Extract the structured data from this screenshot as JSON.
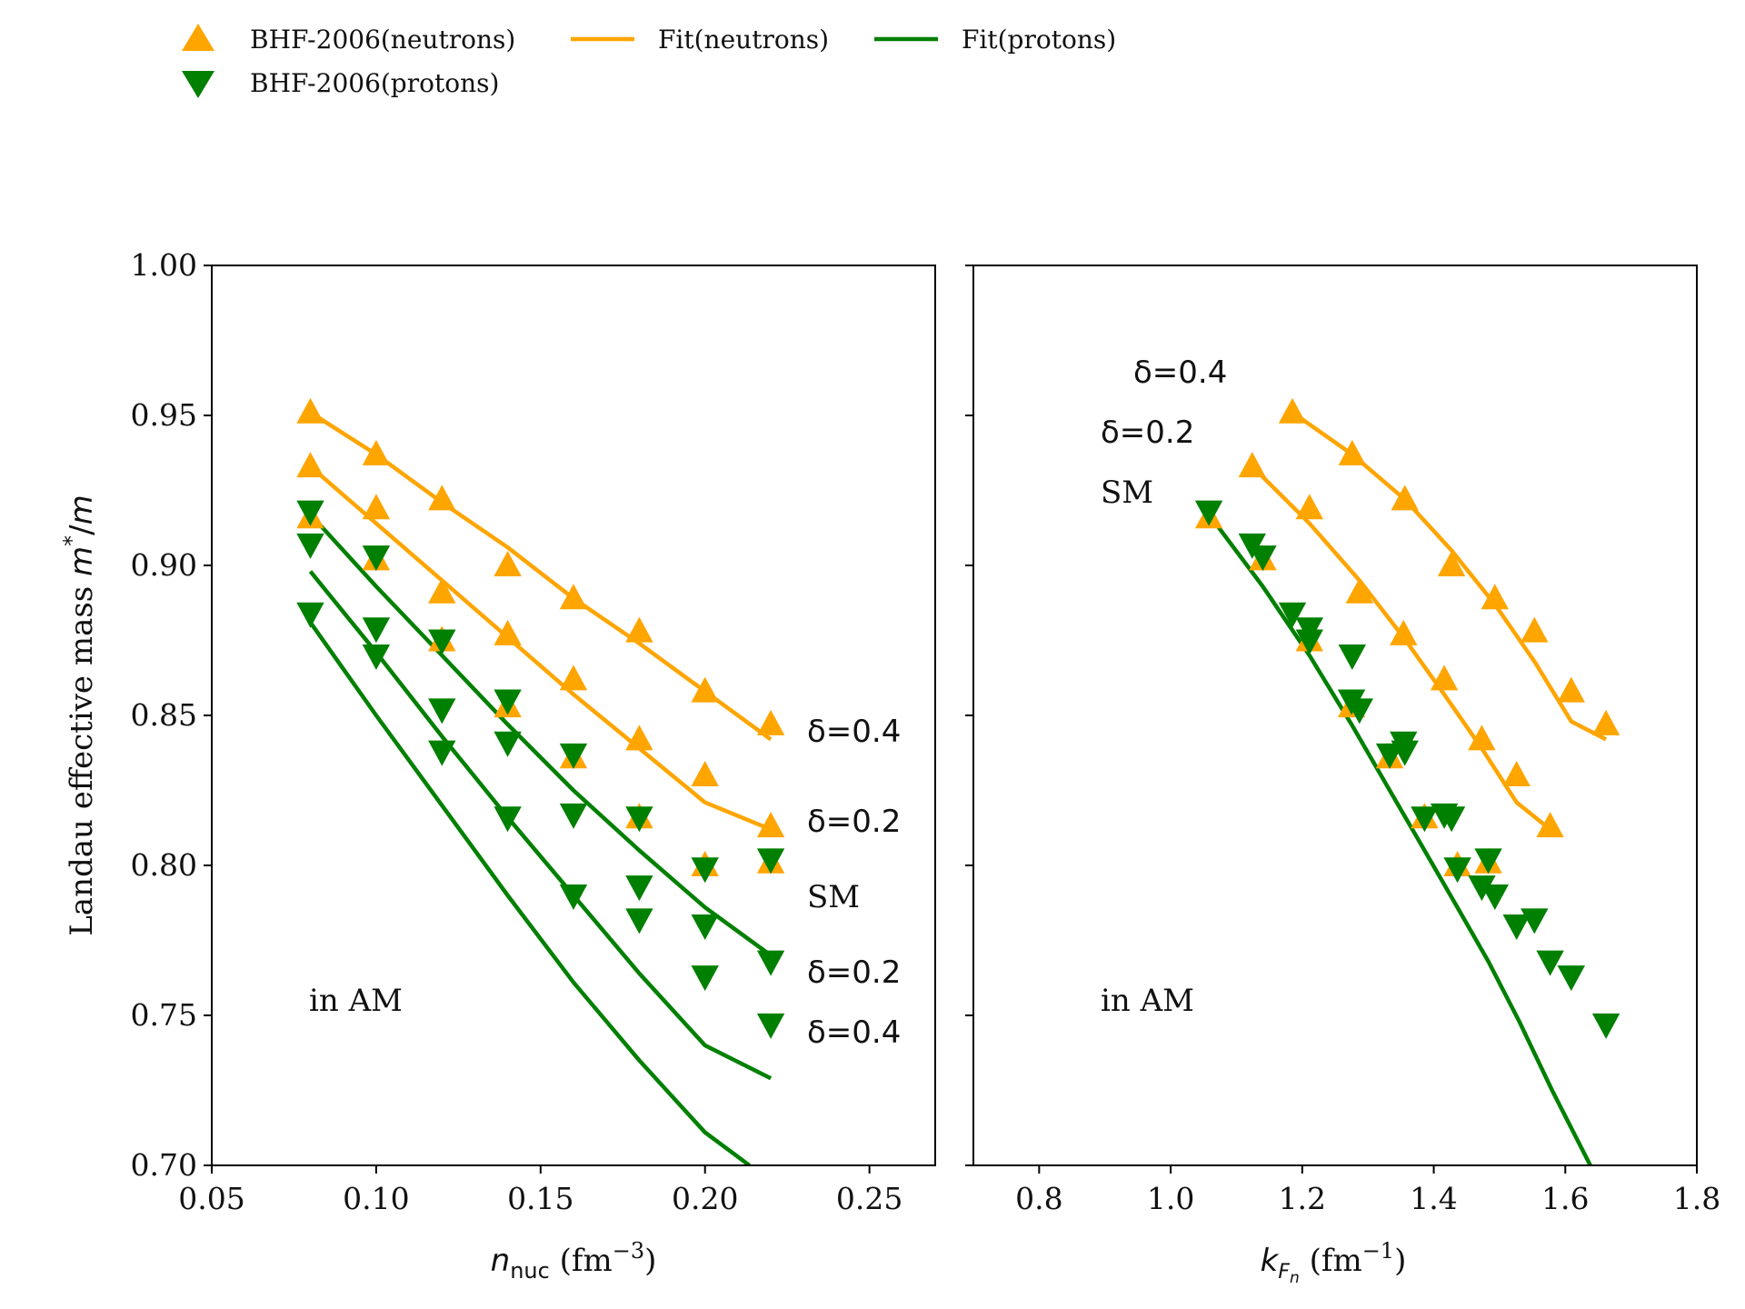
{
  "legend": {
    "neutron_points": "BHF-2006(neutrons)",
    "proton_points": "BHF-2006(protons)",
    "neutron_fit": "Fit(neutrons)",
    "proton_fit": "Fit(protons)"
  },
  "colors": {
    "neutron": "#FFA500",
    "proton": "#008000"
  },
  "chart_data": [
    {
      "type": "scatter",
      "panel": "left",
      "xlabel": "n_nuc (fm^-3)",
      "ylabel": "Landau effective mass m*/m",
      "xlim": [
        0.05,
        0.27
      ],
      "ylim": [
        0.7,
        1.0
      ],
      "xticks": [
        "0.05",
        "0.10",
        "0.15",
        "0.20",
        "0.25"
      ],
      "yticks": [
        "0.70",
        "0.75",
        "0.80",
        "0.85",
        "0.90",
        "0.95",
        "1.00"
      ],
      "annotations": {
        "neutron_d04": "δ=0.4",
        "neutron_d02": "δ=0.2",
        "sm": "SM",
        "proton_d02": "δ=0.2",
        "proton_d04": "δ=0.4",
        "region": "in AM"
      },
      "series": [
        {
          "name": "BHF-2006(neutrons)",
          "kind": "points",
          "group": "neutron",
          "delta": 0.4,
          "points": [
            [
              0.08,
              0.951
            ],
            [
              0.1,
              0.937
            ],
            [
              0.12,
              0.922
            ],
            [
              0.14,
              0.9
            ],
            [
              0.16,
              0.889
            ],
            [
              0.18,
              0.878
            ],
            [
              0.2,
              0.858
            ],
            [
              0.22,
              0.847
            ]
          ]
        },
        {
          "name": "BHF-2006(neutrons)",
          "kind": "points",
          "group": "neutron",
          "delta": 0.2,
          "points": [
            [
              0.08,
              0.933
            ],
            [
              0.1,
              0.919
            ],
            [
              0.12,
              0.891
            ],
            [
              0.14,
              0.877
            ],
            [
              0.16,
              0.862
            ],
            [
              0.18,
              0.842
            ],
            [
              0.2,
              0.83
            ],
            [
              0.22,
              0.813
            ]
          ]
        },
        {
          "name": "BHF-2006(neutrons)",
          "kind": "points",
          "group": "neutron",
          "delta": 0.0,
          "points": [
            [
              0.08,
              0.916
            ],
            [
              0.1,
              0.902
            ],
            [
              0.12,
              0.875
            ],
            [
              0.14,
              0.853
            ],
            [
              0.16,
              0.836
            ],
            [
              0.18,
              0.816
            ],
            [
              0.2,
              0.8
            ],
            [
              0.22,
              0.801
            ]
          ]
        },
        {
          "name": "BHF-2006(protons)",
          "kind": "points",
          "group": "proton",
          "delta": 0.0,
          "points": [
            [
              0.08,
              0.918
            ],
            [
              0.1,
              0.903
            ],
            [
              0.12,
              0.875
            ],
            [
              0.14,
              0.855
            ],
            [
              0.16,
              0.837
            ],
            [
              0.18,
              0.816
            ],
            [
              0.2,
              0.799
            ],
            [
              0.22,
              0.802
            ]
          ]
        },
        {
          "name": "BHF-2006(protons)",
          "kind": "points",
          "group": "proton",
          "delta": 0.2,
          "points": [
            [
              0.08,
              0.907
            ],
            [
              0.1,
              0.879
            ],
            [
              0.12,
              0.852
            ],
            [
              0.14,
              0.841
            ],
            [
              0.16,
              0.817
            ],
            [
              0.18,
              0.793
            ],
            [
              0.2,
              0.78
            ],
            [
              0.22,
              0.768
            ]
          ]
        },
        {
          "name": "BHF-2006(protons)",
          "kind": "points",
          "group": "proton",
          "delta": 0.4,
          "points": [
            [
              0.08,
              0.884
            ],
            [
              0.1,
              0.87
            ],
            [
              0.12,
              0.838
            ],
            [
              0.14,
              0.816
            ],
            [
              0.16,
              0.79
            ],
            [
              0.18,
              0.782
            ],
            [
              0.2,
              0.763
            ],
            [
              0.22,
              0.747
            ]
          ]
        },
        {
          "name": "Fit(neutrons)",
          "kind": "line",
          "group": "neutron",
          "delta": 0.4,
          "points": [
            [
              0.08,
              0.951
            ],
            [
              0.1,
              0.937
            ],
            [
              0.12,
              0.921
            ],
            [
              0.14,
              0.906
            ],
            [
              0.16,
              0.889
            ],
            [
              0.18,
              0.874
            ],
            [
              0.2,
              0.858
            ],
            [
              0.22,
              0.842
            ]
          ]
        },
        {
          "name": "Fit(neutrons)",
          "kind": "line",
          "group": "neutron",
          "delta": 0.2,
          "points": [
            [
              0.08,
              0.933
            ],
            [
              0.1,
              0.914
            ],
            [
              0.12,
              0.895
            ],
            [
              0.14,
              0.876
            ],
            [
              0.16,
              0.857
            ],
            [
              0.18,
              0.839
            ],
            [
              0.2,
              0.821
            ],
            [
              0.22,
              0.812
            ]
          ]
        },
        {
          "name": "Fit(protons)",
          "kind": "line",
          "group": "proton",
          "delta": 0.0,
          "points": [
            [
              0.08,
              0.917
            ],
            [
              0.1,
              0.893
            ],
            [
              0.12,
              0.87
            ],
            [
              0.14,
              0.847
            ],
            [
              0.16,
              0.825
            ],
            [
              0.18,
              0.805
            ],
            [
              0.2,
              0.786
            ],
            [
              0.22,
              0.77
            ]
          ]
        },
        {
          "name": "Fit(protons)",
          "kind": "line",
          "group": "proton",
          "delta": 0.2,
          "points": [
            [
              0.08,
              0.898
            ],
            [
              0.1,
              0.871
            ],
            [
              0.12,
              0.843
            ],
            [
              0.14,
              0.816
            ],
            [
              0.16,
              0.79
            ],
            [
              0.18,
              0.764
            ],
            [
              0.2,
              0.74
            ],
            [
              0.22,
              0.729
            ]
          ]
        },
        {
          "name": "Fit(protons)",
          "kind": "line",
          "group": "proton",
          "delta": 0.4,
          "points": [
            [
              0.08,
              0.881
            ],
            [
              0.1,
              0.85
            ],
            [
              0.12,
              0.82
            ],
            [
              0.14,
              0.79
            ],
            [
              0.16,
              0.761
            ],
            [
              0.18,
              0.735
            ],
            [
              0.2,
              0.711
            ],
            [
              0.2135,
              0.7
            ]
          ]
        }
      ]
    },
    {
      "type": "scatter",
      "panel": "right",
      "xlabel": "k_Fn (fm^-1)",
      "xlim": [
        0.7,
        1.8
      ],
      "ylim": [
        0.7,
        1.0
      ],
      "xticks": [
        "0.8",
        "1.0",
        "1.2",
        "1.4",
        "1.6",
        "1.8"
      ],
      "annotations": {
        "d04": "δ=0.4",
        "d02": "δ=0.2",
        "sm": "SM",
        "region": "in AM"
      },
      "series": [
        {
          "name": "BHF-2006(neutrons)",
          "kind": "points",
          "group": "neutron",
          "delta": 0.4,
          "points": [
            [
              1.185,
              0.951
            ],
            [
              1.276,
              0.937
            ],
            [
              1.356,
              0.922
            ],
            [
              1.427,
              0.9
            ],
            [
              1.493,
              0.889
            ],
            [
              1.553,
              0.878
            ],
            [
              1.609,
              0.858
            ],
            [
              1.662,
              0.847
            ]
          ]
        },
        {
          "name": "BHF-2006(neutrons)",
          "kind": "points",
          "group": "neutron",
          "delta": 0.2,
          "points": [
            [
              1.124,
              0.933
            ],
            [
              1.211,
              0.919
            ],
            [
              1.287,
              0.891
            ],
            [
              1.354,
              0.877
            ],
            [
              1.416,
              0.862
            ],
            [
              1.473,
              0.842
            ],
            [
              1.526,
              0.83
            ],
            [
              1.577,
              0.813
            ]
          ]
        },
        {
          "name": "BHF-2006(neutrons)",
          "kind": "points",
          "group": "neutron",
          "delta": 0.0,
          "points": [
            [
              1.058,
              0.916
            ],
            [
              1.14,
              0.902
            ],
            [
              1.211,
              0.875
            ],
            [
              1.275,
              0.853
            ],
            [
              1.333,
              0.836
            ],
            [
              1.386,
              0.816
            ],
            [
              1.436,
              0.8
            ],
            [
              1.483,
              0.801
            ]
          ]
        },
        {
          "name": "BHF-2006(protons)",
          "kind": "points",
          "group": "proton",
          "delta": 0.0,
          "points": [
            [
              1.058,
              0.918
            ],
            [
              1.14,
              0.903
            ],
            [
              1.211,
              0.875
            ],
            [
              1.275,
              0.855
            ],
            [
              1.333,
              0.837
            ],
            [
              1.386,
              0.816
            ],
            [
              1.436,
              0.799
            ],
            [
              1.483,
              0.802
            ]
          ]
        },
        {
          "name": "BHF-2006(protons)",
          "kind": "points",
          "group": "proton",
          "delta": 0.2,
          "points": [
            [
              1.124,
              0.907
            ],
            [
              1.211,
              0.879
            ],
            [
              1.287,
              0.852
            ],
            [
              1.354,
              0.841
            ],
            [
              1.416,
              0.817
            ],
            [
              1.473,
              0.793
            ],
            [
              1.526,
              0.78
            ],
            [
              1.577,
              0.768
            ]
          ]
        },
        {
          "name": "BHF-2006(protons)",
          "kind": "points",
          "group": "proton",
          "delta": 0.4,
          "points": [
            [
              1.185,
              0.884
            ],
            [
              1.276,
              0.87
            ],
            [
              1.356,
              0.838
            ],
            [
              1.427,
              0.816
            ],
            [
              1.493,
              0.79
            ],
            [
              1.553,
              0.782
            ],
            [
              1.609,
              0.763
            ],
            [
              1.662,
              0.747
            ]
          ]
        },
        {
          "name": "Fit(neutrons)",
          "kind": "line",
          "group": "neutron",
          "delta": 0.4,
          "points": [
            [
              1.185,
              0.951
            ],
            [
              1.276,
              0.937
            ],
            [
              1.356,
              0.922
            ],
            [
              1.427,
              0.905
            ],
            [
              1.493,
              0.887
            ],
            [
              1.553,
              0.868
            ],
            [
              1.609,
              0.848
            ],
            [
              1.662,
              0.842
            ]
          ]
        },
        {
          "name": "Fit(neutrons)",
          "kind": "line",
          "group": "neutron",
          "delta": 0.2,
          "points": [
            [
              1.124,
              0.933
            ],
            [
              1.211,
              0.914
            ],
            [
              1.287,
              0.895
            ],
            [
              1.354,
              0.876
            ],
            [
              1.416,
              0.857
            ],
            [
              1.473,
              0.839
            ],
            [
              1.526,
              0.821
            ],
            [
              1.577,
              0.812
            ]
          ]
        },
        {
          "name": "Fit(protons)",
          "kind": "line",
          "group": "proton",
          "delta": 0.0,
          "points": [
            [
              1.058,
              0.917
            ],
            [
              1.14,
              0.893
            ],
            [
              1.211,
              0.87
            ],
            [
              1.275,
              0.847
            ],
            [
              1.333,
              0.825
            ],
            [
              1.386,
              0.805
            ],
            [
              1.436,
              0.786
            ],
            [
              1.483,
              0.768
            ],
            [
              1.53,
              0.748
            ],
            [
              1.58,
              0.725
            ],
            [
              1.638,
              0.7
            ]
          ]
        }
      ]
    }
  ]
}
